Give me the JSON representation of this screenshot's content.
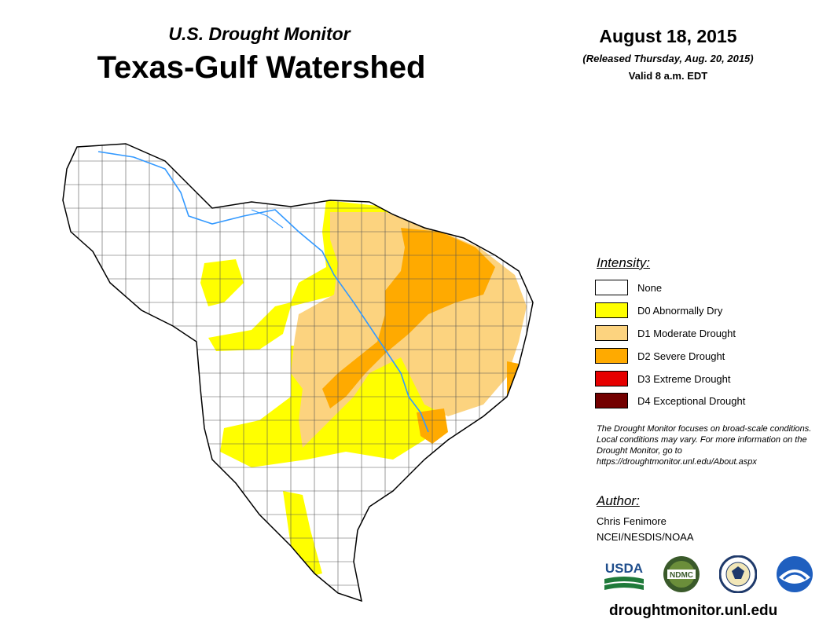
{
  "header": {
    "subtitle": "U.S. Drought Monitor",
    "title": "Texas-Gulf Watershed",
    "date": "August 18, 2015",
    "released": "(Released Thursday, Aug. 20, 2015)",
    "valid": "Valid 8 a.m. EDT"
  },
  "legend": {
    "title": "Intensity:",
    "items": [
      {
        "label": "None",
        "color": "#ffffff"
      },
      {
        "label": "D0 Abnormally Dry",
        "color": "#ffff00"
      },
      {
        "label": "D1 Moderate Drought",
        "color": "#fcd37f"
      },
      {
        "label": "D2 Severe Drought",
        "color": "#ffaa00"
      },
      {
        "label": "D3 Extreme Drought",
        "color": "#e60000"
      },
      {
        "label": "D4 Exceptional Drought",
        "color": "#730000"
      }
    ]
  },
  "note": "The Drought Monitor focuses on broad-scale conditions. Local conditions may vary. For more information on the Drought Monitor, go to https://droughtmonitor.unl.edu/About.aspx",
  "author": {
    "title": "Author:",
    "name": "Chris Fenimore",
    "org": "NCEI/NESDIS/NOAA"
  },
  "logos": [
    "USDA",
    "NDMC",
    "Department of Commerce seal",
    "NOAA"
  ],
  "website": "droughtmonitor.unl.edu",
  "colors": {
    "river": "#3399ff",
    "county_line": "#555555"
  }
}
